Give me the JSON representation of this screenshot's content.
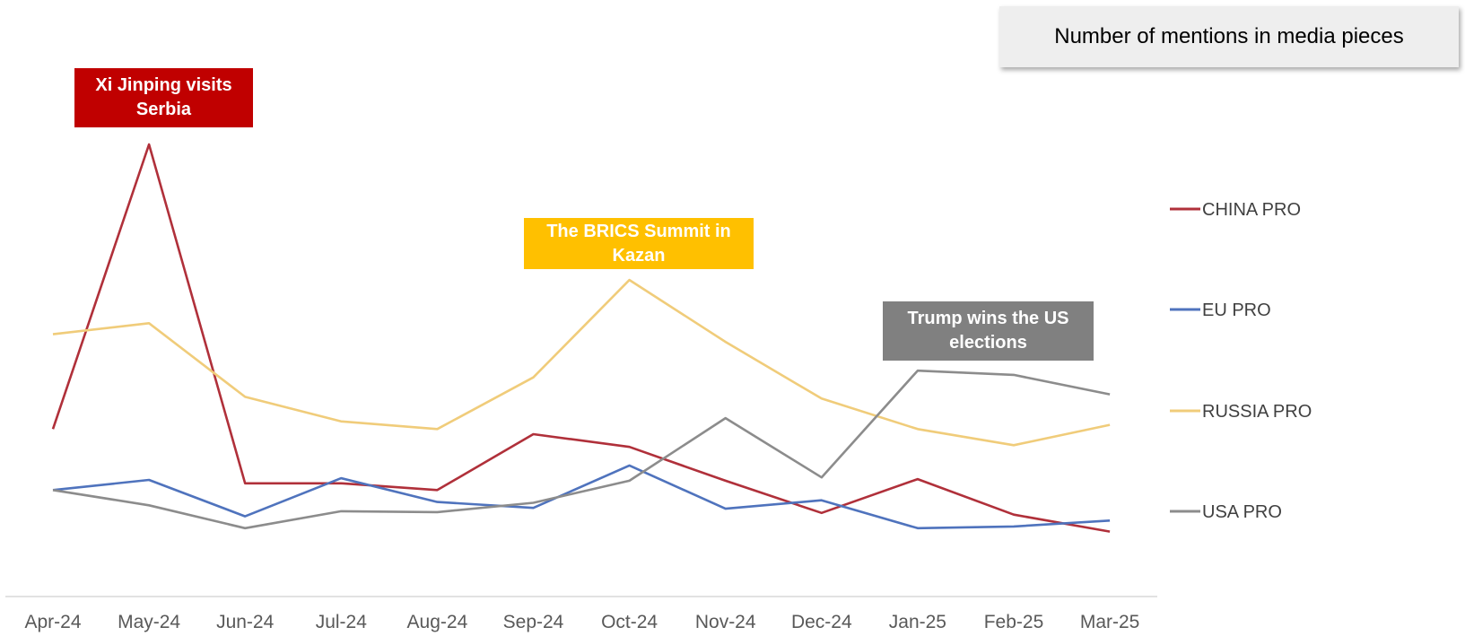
{
  "title": "Number of mentions in media pieces",
  "annotations": [
    {
      "text": "Xi Jinping visits\nSerbia",
      "color": "#c00000"
    },
    {
      "text": "The BRICS Summit in\nKazan",
      "color": "#ffc000"
    },
    {
      "text": "Trump wins the US\nelections",
      "color": "#808080"
    }
  ],
  "chart_data": {
    "type": "line",
    "categories": [
      "Apr-24",
      "May-24",
      "Jun-24",
      "Jul-24",
      "Aug-24",
      "Sep-24",
      "Oct-24",
      "Nov-24",
      "Dec-24",
      "Jan-25",
      "Feb-25",
      "Mar-25"
    ],
    "y_axis_shown": false,
    "grid": false,
    "legend_position": "right",
    "series": [
      {
        "name": "CHINA PRO",
        "color": "#b0303a",
        "values": [
          168,
          504,
          104,
          104,
          96,
          162,
          147,
          107,
          69,
          109,
          67,
          47
        ]
      },
      {
        "name": "EU PRO",
        "color": "#4f73bd",
        "values": [
          96,
          108,
          65,
          110,
          82,
          75,
          125,
          74,
          84,
          51,
          53,
          60
        ]
      },
      {
        "name": "RUSSIA PRO",
        "color": "#f0cc7a",
        "values": [
          280,
          293,
          206,
          177,
          168,
          229,
          344,
          271,
          204,
          168,
          149,
          173
        ]
      },
      {
        "name": "USA PRO",
        "color": "#8c8c8c",
        "values": [
          96,
          78,
          51,
          71,
          70,
          81,
          107,
          181,
          111,
          237,
          232,
          209
        ]
      }
    ]
  }
}
